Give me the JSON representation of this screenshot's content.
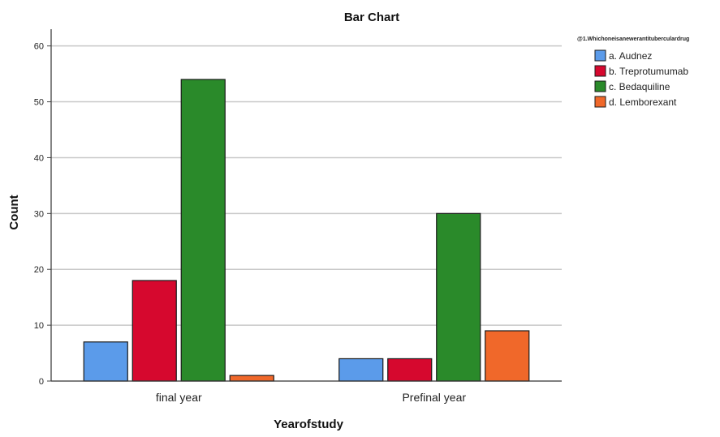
{
  "chart_data": {
    "type": "bar",
    "title": "Bar Chart",
    "xlabel": "Yearofstudy",
    "ylabel": "Count",
    "categories": [
      "final year",
      "Prefinal year"
    ],
    "ylim": [
      0,
      63
    ],
    "yticks": [
      0,
      10,
      20,
      30,
      40,
      50,
      60
    ],
    "grid": true,
    "legend_placement": "top-right",
    "legend_title": "@1.Whichoneisanewerantituberculardrug",
    "series": [
      {
        "name": "a. Audnez",
        "color": "#5b9bea",
        "values": [
          7,
          4
        ]
      },
      {
        "name": "b. Treprotumumab",
        "color": "#d6082e",
        "values": [
          18,
          4
        ]
      },
      {
        "name": "c. Bedaquiline",
        "color": "#2a8a2a",
        "values": [
          54,
          30
        ]
      },
      {
        "name": "d. Lemborexant",
        "color": "#f0682a",
        "values": [
          1,
          9
        ]
      }
    ]
  }
}
